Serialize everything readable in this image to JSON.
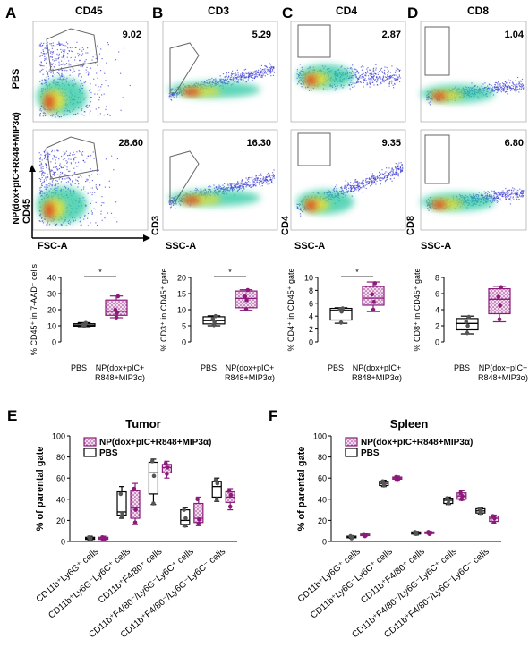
{
  "flow": {
    "row_labels": [
      "PBS",
      "NP(dox+pIC+R848+MIP3α)"
    ],
    "panels": [
      {
        "letter": "A",
        "title": "CD45",
        "pct": [
          "9.02",
          "28.60"
        ],
        "xlabel": "FSC-A",
        "ylabel": "CD45"
      },
      {
        "letter": "B",
        "title": "CD3",
        "pct": [
          "5.29",
          "16.30"
        ],
        "xlabel": "SSC-A",
        "ylabel": "CD3"
      },
      {
        "letter": "C",
        "title": "CD4",
        "pct": [
          "2.87",
          "9.35"
        ],
        "xlabel": "SSC-A",
        "ylabel": "CD4"
      },
      {
        "letter": "D",
        "title": "CD8",
        "pct": [
          "1.04",
          "6.80"
        ],
        "xlabel": "SSC-A",
        "ylabel": "CD8"
      }
    ]
  },
  "colors": {
    "pbs": "#000000",
    "np": "#8b1a7a",
    "np_fill": "#d8a7cf"
  },
  "chart_data": [
    {
      "type": "box",
      "ylabel": "% CD45⁺ in 7-AAD⁻ cells",
      "ylim": [
        0,
        40
      ],
      "yticks": [
        "0",
        "10",
        "20",
        "30",
        "40"
      ],
      "categories": [
        "PBS",
        "NP(dox+pIC+R848+MIP3α)"
      ],
      "significance": "*",
      "boxes": [
        {
          "group": "PBS",
          "min": 9.5,
          "q1": 9.8,
          "median": 10.4,
          "q3": 11.3,
          "max": 12.0,
          "points": [
            9.7,
            10.2,
            10.6,
            11.8
          ]
        },
        {
          "group": "NP(dox+pIC+R848+MIP3α)",
          "min": 15.0,
          "q1": 16.5,
          "median": 19.0,
          "q3": 26.0,
          "max": 28.5,
          "points": [
            15.2,
            18.0,
            20.0,
            28.3
          ]
        }
      ]
    },
    {
      "type": "box",
      "ylabel": "% CD3⁺ in CD45⁺ gate",
      "ylim": [
        0,
        20
      ],
      "yticks": [
        "0",
        "5",
        "10",
        "15",
        "20"
      ],
      "categories": [
        "PBS",
        "NP(dox+pIC+R848+MIP3α)"
      ],
      "significance": "*",
      "boxes": [
        {
          "group": "PBS",
          "min": 5.0,
          "q1": 5.6,
          "median": 6.6,
          "q3": 7.8,
          "max": 8.1,
          "points": [
            5.2,
            6.2,
            7.1,
            8.0
          ]
        },
        {
          "group": "NP(dox+pIC+R848+MIP3α)",
          "min": 9.8,
          "q1": 10.6,
          "median": 13.5,
          "q3": 15.8,
          "max": 16.2,
          "points": [
            10.1,
            13.0,
            14.1,
            16.1
          ]
        }
      ]
    },
    {
      "type": "box",
      "ylabel": "% CD4⁺ in CD45⁺ gate",
      "ylim": [
        0,
        10
      ],
      "yticks": [
        "0",
        "2",
        "4",
        "6",
        "8",
        "10"
      ],
      "categories": [
        "PBS",
        "NP(dox+pIC+R848+MIP3α)"
      ],
      "significance": "*",
      "boxes": [
        {
          "group": "PBS",
          "min": 2.9,
          "q1": 3.4,
          "median": 4.9,
          "q3": 5.2,
          "max": 5.3,
          "points": [
            3.0,
            4.7,
            5.0,
            5.2
          ]
        },
        {
          "group": "NP(dox+pIC+R848+MIP3α)",
          "min": 4.7,
          "q1": 5.7,
          "median": 6.8,
          "q3": 8.6,
          "max": 9.3,
          "points": [
            5.0,
            6.2,
            7.4,
            9.1
          ]
        }
      ]
    },
    {
      "type": "box",
      "ylabel": "% CD8⁺ in CD45⁺ gate",
      "ylim": [
        0,
        8
      ],
      "yticks": [
        "0",
        "2",
        "4",
        "6",
        "8"
      ],
      "categories": [
        "PBS",
        "NP(dox+pIC+R848+MIP3α)"
      ],
      "significance": "",
      "boxes": [
        {
          "group": "PBS",
          "min": 1.0,
          "q1": 1.5,
          "median": 2.3,
          "q3": 2.9,
          "max": 3.2,
          "points": [
            1.1,
            2.0,
            2.5,
            3.1
          ]
        },
        {
          "group": "NP(dox+pIC+R848+MIP3α)",
          "min": 2.5,
          "q1": 3.5,
          "median": 5.3,
          "q3": 6.6,
          "max": 6.9,
          "points": [
            2.8,
            4.5,
            5.6,
            6.8
          ]
        }
      ]
    },
    {
      "type": "box",
      "title": "Tumor",
      "ylabel": "% of parental gate",
      "ylim": [
        0,
        100
      ],
      "yticks": [
        "0",
        "20",
        "40",
        "60",
        "80",
        "100"
      ],
      "legend": [
        "NP(dox+pIC+R848+MIP3α)",
        "PBS"
      ],
      "categories": [
        "CD11b⁺Ly6G⁺ cells",
        "CD11b⁺Ly6G⁻Ly6C⁺ cells",
        "CD11b⁺F4/80⁺ cells",
        "CD11b⁺F4/80⁻/Ly6G⁻Ly6C⁺ cells",
        "CD11b⁺F4/80⁻/Ly6G⁻Ly6C⁻ cells"
      ],
      "series": [
        {
          "name": "PBS",
          "boxes": [
            {
              "min": 1,
              "q1": 2,
              "median": 3,
              "q3": 4,
              "max": 5,
              "points": [
                2,
                3,
                4
              ]
            },
            {
              "min": 22,
              "q1": 25,
              "median": 28,
              "q3": 47,
              "max": 52,
              "points": [
                24,
                27,
                45
              ]
            },
            {
              "min": 35,
              "q1": 45,
              "median": 65,
              "q3": 75,
              "max": 78,
              "points": [
                36,
                62,
                76
              ]
            },
            {
              "min": 14,
              "q1": 16,
              "median": 20,
              "q3": 30,
              "max": 32,
              "points": [
                15,
                22,
                30
              ]
            },
            {
              "min": 38,
              "q1": 42,
              "median": 52,
              "q3": 57,
              "max": 60,
              "points": [
                40,
                55,
                58
              ]
            }
          ]
        },
        {
          "name": "NP(dox+pIC+R848+MIP3α)",
          "boxes": [
            {
              "min": 1,
              "q1": 2,
              "median": 3,
              "q3": 4,
              "max": 5,
              "points": [
                2,
                3,
                4
              ]
            },
            {
              "min": 16,
              "q1": 22,
              "median": 32,
              "q3": 48,
              "max": 55,
              "points": [
                18,
                30,
                50
              ]
            },
            {
              "min": 60,
              "q1": 65,
              "median": 70,
              "q3": 73,
              "max": 76,
              "points": [
                64,
                70,
                74
              ]
            },
            {
              "min": 15,
              "q1": 18,
              "median": 22,
              "q3": 36,
              "max": 42,
              "points": [
                17,
                21,
                40
              ]
            },
            {
              "min": 30,
              "q1": 37,
              "median": 42,
              "q3": 47,
              "max": 50,
              "points": [
                33,
                44,
                48
              ]
            }
          ]
        }
      ]
    },
    {
      "type": "box",
      "title": "Spleen",
      "ylabel": "% of parental gate",
      "ylim": [
        0,
        100
      ],
      "yticks": [
        "0",
        "20",
        "40",
        "60",
        "80",
        "100"
      ],
      "legend": [
        "NP(dox+pIC+R848+MIP3α)",
        "PBS"
      ],
      "categories": [
        "CD11b⁺Ly6G⁺ cells",
        "CD11b⁺Ly6G⁻Ly6C⁺ cells",
        "CD11b⁺F4/80⁺ cells",
        "CD11b⁺F4/80⁻/Ly6G⁻Ly6C⁺ cells",
        "CD11b⁺F4/80⁻/Ly6G⁻Ly6C⁻ cells"
      ],
      "series": [
        {
          "name": "PBS",
          "boxes": [
            {
              "min": 3,
              "q1": 3.5,
              "median": 4,
              "q3": 5,
              "max": 5.5,
              "points": [
                3,
                4,
                5
              ]
            },
            {
              "min": 52,
              "q1": 53,
              "median": 55,
              "q3": 57,
              "max": 58,
              "points": [
                53,
                55,
                57
              ]
            },
            {
              "min": 6,
              "q1": 7,
              "median": 8,
              "q3": 9,
              "max": 9.5,
              "points": [
                7,
                8,
                9
              ]
            },
            {
              "min": 35,
              "q1": 36,
              "median": 39,
              "q3": 41,
              "max": 42,
              "points": [
                36,
                39,
                41
              ]
            },
            {
              "min": 26,
              "q1": 27,
              "median": 29,
              "q3": 31,
              "max": 32,
              "points": [
                27,
                29,
                31
              ]
            }
          ]
        },
        {
          "name": "NP(dox+pIC+R848+MIP3α)",
          "boxes": [
            {
              "min": 5,
              "q1": 5.5,
              "median": 6,
              "q3": 7,
              "max": 7.5,
              "points": [
                5,
                6,
                7
              ]
            },
            {
              "min": 58,
              "q1": 59,
              "median": 60,
              "q3": 61,
              "max": 62,
              "points": [
                59,
                60,
                61
              ]
            },
            {
              "min": 7,
              "q1": 7.5,
              "median": 8,
              "q3": 9,
              "max": 9.5,
              "points": [
                7,
                8,
                9
              ]
            },
            {
              "min": 39,
              "q1": 40,
              "median": 43,
              "q3": 46,
              "max": 48,
              "points": [
                40,
                43,
                46
              ]
            },
            {
              "min": 17,
              "q1": 19,
              "median": 22,
              "q3": 24,
              "max": 25,
              "points": [
                18,
                22,
                24
              ]
            }
          ]
        }
      ]
    }
  ]
}
